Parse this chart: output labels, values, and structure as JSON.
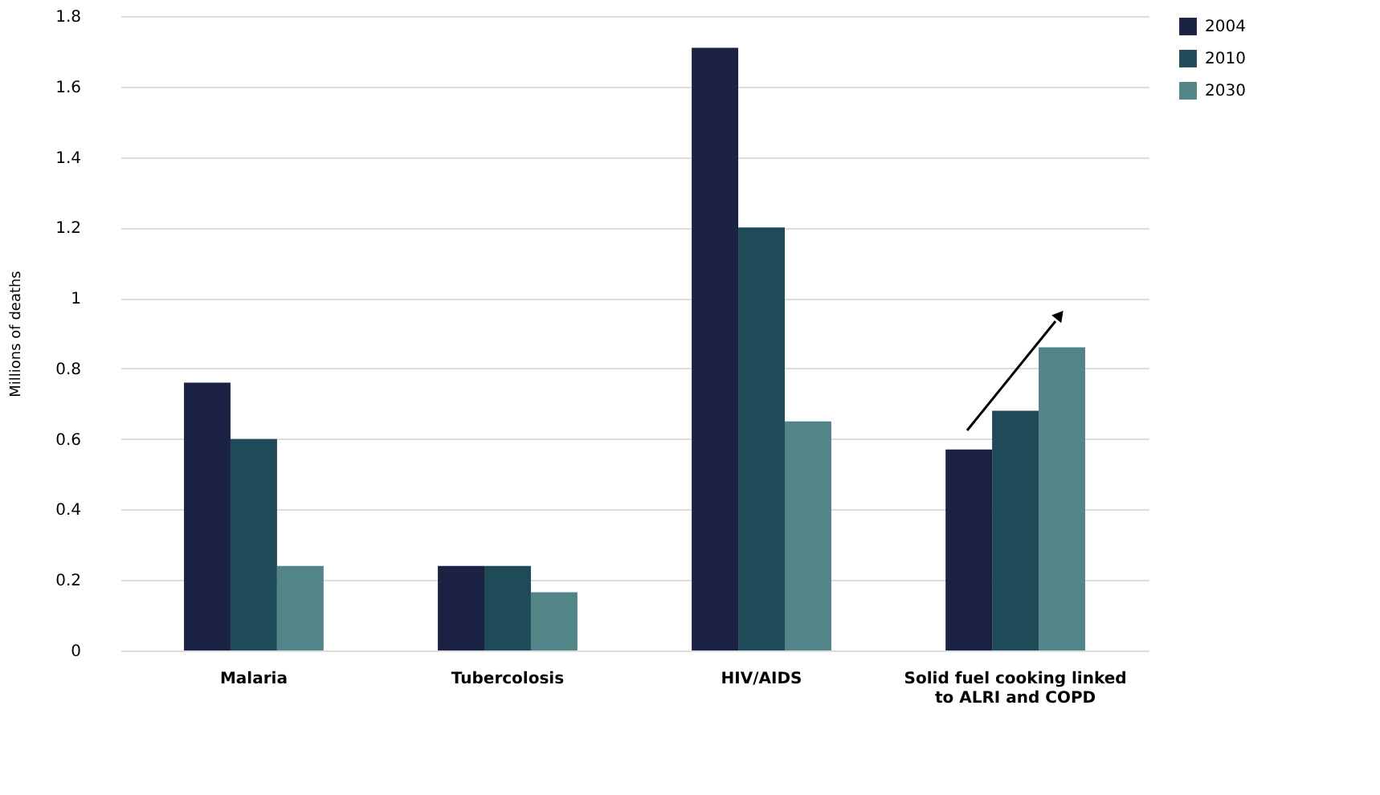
{
  "chart_data": {
    "type": "bar",
    "ylabel": "Millions of deaths",
    "categories": [
      "Malaria",
      "Tubercolosis",
      "HIV/AIDS",
      "Solid fuel cooking linked\nto ALRI and COPD"
    ],
    "series": [
      {
        "name": "2004",
        "color": "#1b2244",
        "values": [
          0.76,
          0.24,
          1.71,
          0.57
        ]
      },
      {
        "name": "2010",
        "color": "#1f4a57",
        "values": [
          0.6,
          0.24,
          1.2,
          0.68
        ]
      },
      {
        "name": "2030",
        "color": "#528587",
        "values": [
          0.24,
          0.165,
          0.65,
          0.86
        ]
      }
    ],
    "ylim": [
      0,
      1.8
    ],
    "yticks": [
      0,
      0.2,
      0.4,
      0.6,
      0.8,
      1,
      1.2,
      1.4,
      1.6,
      1.8
    ],
    "grid": "y",
    "legend": "top right"
  }
}
